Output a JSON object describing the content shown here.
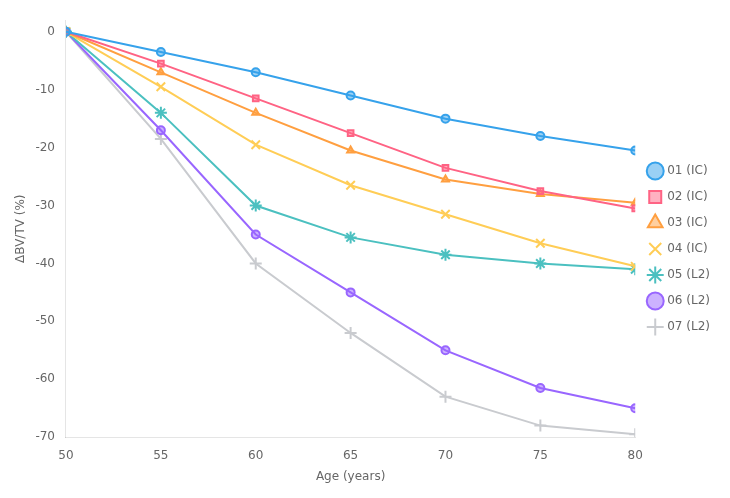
{
  "chart_data": {
    "type": "line",
    "xlabel": "Age (years)",
    "ylabel": "ΔBV/TV (%)",
    "x": [
      50,
      55,
      60,
      65,
      70,
      75,
      80
    ],
    "xlim": [
      50,
      80
    ],
    "xticks": [
      50,
      55,
      60,
      65,
      70,
      75,
      80
    ],
    "ylim": [
      -70,
      2
    ],
    "yticks": [
      0,
      -10,
      -20,
      -30,
      -40,
      -50,
      -60,
      -70
    ],
    "grid": false,
    "legend": "right",
    "series": [
      {
        "name": "01 (IC)",
        "marker": "circle",
        "values": [
          0,
          -3.5,
          -7.0,
          -11.0,
          -15.0,
          -18.0,
          -20.5
        ]
      },
      {
        "name": "02 (IC)",
        "marker": "square",
        "values": [
          0,
          -5.5,
          -11.5,
          -17.5,
          -23.5,
          -27.5,
          -30.5
        ]
      },
      {
        "name": "03 (IC)",
        "marker": "triangle",
        "values": [
          0,
          -7.0,
          -14.0,
          -20.5,
          -25.5,
          -28.0,
          -29.5
        ]
      },
      {
        "name": "04 (IC)",
        "marker": "x",
        "values": [
          0,
          -9.5,
          -19.5,
          -26.5,
          -31.5,
          -36.5,
          -40.5
        ]
      },
      {
        "name": "05 (L2)",
        "marker": "star",
        "values": [
          0,
          -14.0,
          -30.0,
          -35.5,
          -38.5,
          -40.0,
          -41.0
        ]
      },
      {
        "name": "06 (L2)",
        "marker": "circle",
        "values": [
          0,
          -17.0,
          -35.0,
          -45.0,
          -55.0,
          -61.5,
          -65.0
        ]
      },
      {
        "name": "07 (L2)",
        "marker": "plus",
        "values": [
          0,
          -18.5,
          -40.0,
          -52.0,
          -63.0,
          -68.0,
          -69.5
        ]
      }
    ]
  }
}
